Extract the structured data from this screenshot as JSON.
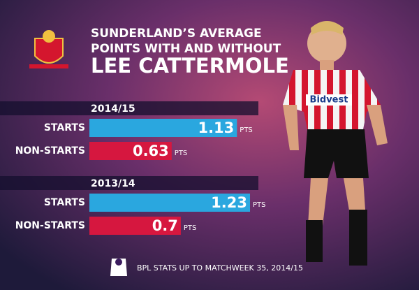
{
  "title": [
    "SUNDERLAND’S AVERAGE",
    "POINTS WITH AND WITHOUT",
    "LEE CATTERMOLE"
  ],
  "footer": "BPL STATS UP TO MATCHWEEK 35, 2014/15",
  "chart_data": [
    {
      "type": "bar",
      "title": "2014/15",
      "categories": [
        "STARTS",
        "NON-STARTS"
      ],
      "values": [
        1.13,
        0.63
      ],
      "colors": [
        "#2aa7df",
        "#d6173f"
      ],
      "unit": "PTS"
    },
    {
      "type": "bar",
      "title": "2013/14",
      "categories": [
        "STARTS",
        "NON-STARTS"
      ],
      "values": [
        1.23,
        0.7
      ],
      "colors": [
        "#2aa7df",
        "#d6173f"
      ],
      "unit": "PTS"
    }
  ]
}
